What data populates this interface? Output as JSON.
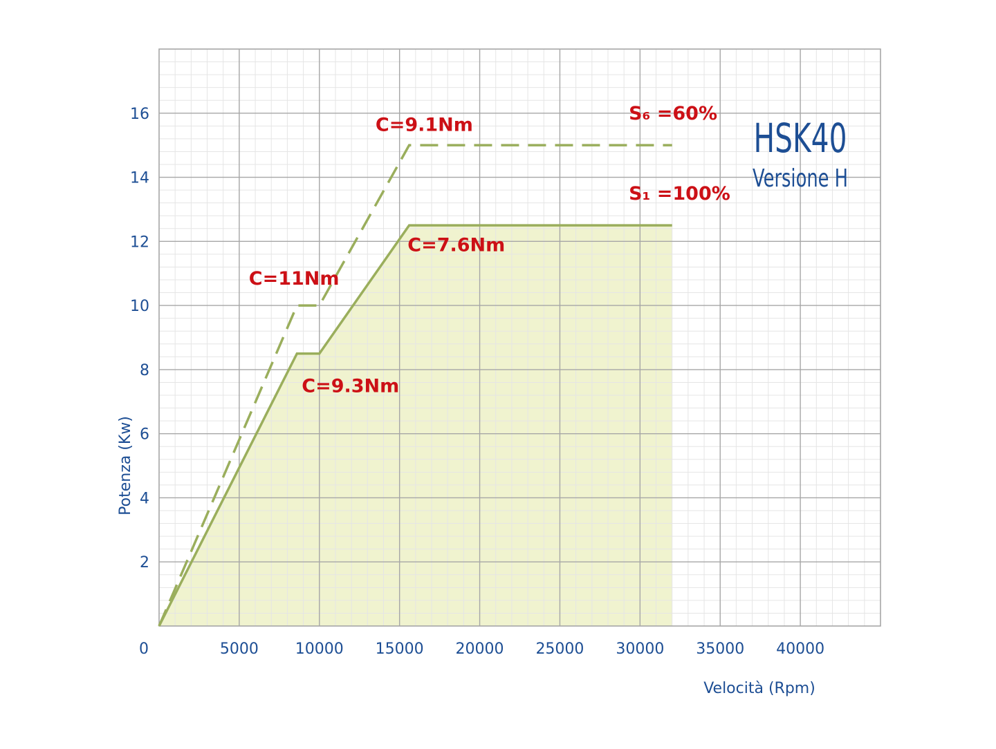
{
  "chart_data": {
    "type": "line",
    "title": "HSK40",
    "subtitle": "Versione H",
    "xlabel": "Velocità   (Rpm)",
    "ylabel": "Potenza  (Kw)",
    "xlim": [
      0,
      45000
    ],
    "ylim": [
      0,
      18
    ],
    "xticks": [
      0,
      5000,
      10000,
      15000,
      20000,
      25000,
      30000,
      35000,
      40000
    ],
    "yticks": [
      2,
      4,
      6,
      8,
      10,
      12,
      14,
      16
    ],
    "xtick_labels": [
      "0",
      "5000",
      "10000",
      "15000",
      "20000",
      "25000",
      "30000",
      "35000",
      "40000"
    ],
    "ytick_labels": [
      "2",
      "4",
      "6",
      "8",
      "10",
      "12",
      "14",
      "16"
    ],
    "grid": true,
    "major_grid_x_step": 5000,
    "major_grid_y_step": 2,
    "minor_grid_x_step": 1000,
    "minor_grid_y_step": 0.4,
    "series": [
      {
        "name": "S6 =60%",
        "style": "dashed",
        "color": "#9aae5c",
        "points": [
          [
            0,
            0
          ],
          [
            8600,
            10
          ],
          [
            10000,
            10
          ],
          [
            15600,
            15
          ],
          [
            32000,
            15
          ]
        ]
      },
      {
        "name": "S1 =100%",
        "style": "solid",
        "fill": "#f0f3cf",
        "color": "#9aae5c",
        "points": [
          [
            0,
            0
          ],
          [
            8600,
            8.5
          ],
          [
            10000,
            8.5
          ],
          [
            15600,
            12.5
          ],
          [
            32000,
            12.5
          ]
        ]
      }
    ],
    "annotations": [
      {
        "text": "C=9.1Nm",
        "x": 13500,
        "y": 15.45
      },
      {
        "text": "S₆ =60%",
        "x": 29300,
        "y": 15.8
      },
      {
        "text": "S₁ =100%",
        "x": 29300,
        "y": 13.3
      },
      {
        "text": "C=11Nm",
        "x": 5600,
        "y": 10.65
      },
      {
        "text": "C=7.6Nm",
        "x": 15500,
        "y": 11.7
      },
      {
        "text": "C=9.3Nm",
        "x": 8900,
        "y": 7.3
      }
    ]
  },
  "colors": {
    "axis_text": "#1d4e94",
    "annotation": "#cc1016",
    "major_grid": "#a6a6a6",
    "minor_grid": "#e5e5e5",
    "line": "#9aae5c",
    "fill": "#f0f3cf"
  }
}
